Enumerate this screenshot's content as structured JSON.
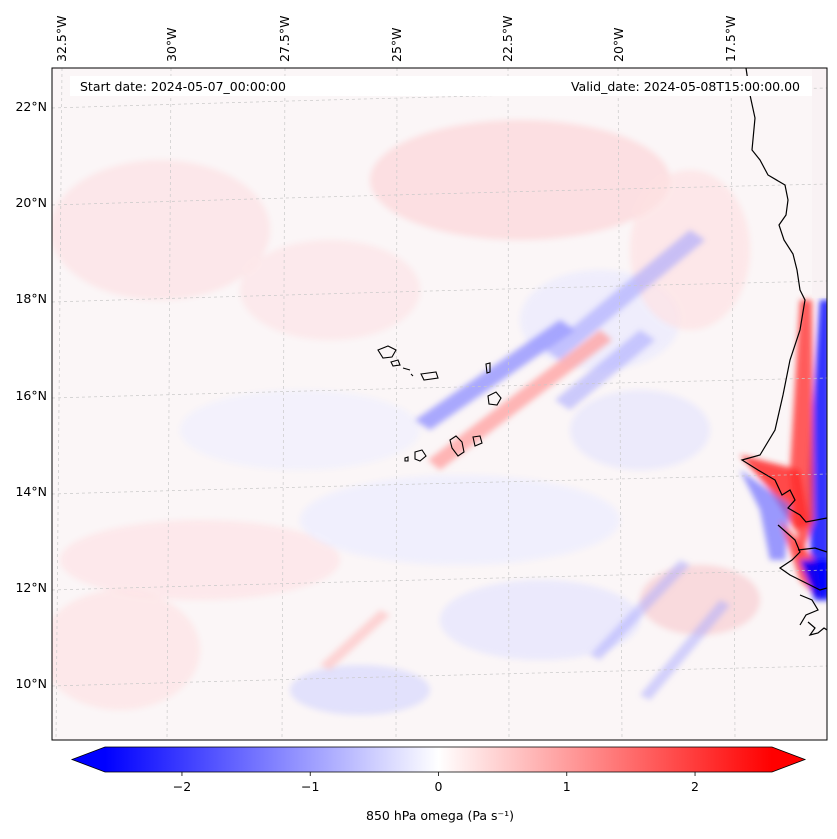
{
  "map": {
    "start_date": "Start date: 2024-05-07_00:00:00",
    "valid_date": "Valid_date: 2024-05-08T15:00:00.00",
    "lon_labels": [
      "32.5°W",
      "30°W",
      "27.5°W",
      "25°W",
      "22.5°W",
      "20°W",
      "17.5°W"
    ],
    "lat_labels": [
      "22°N",
      "20°N",
      "18°N",
      "16°N",
      "14°N",
      "12°N",
      "10°N"
    ],
    "colorbar": {
      "label": "850 hPa omega (Pa s⁻¹)",
      "ticks": [
        "−2",
        "−1",
        "0",
        "1",
        "2"
      ],
      "tick_values": [
        -2,
        -1,
        0,
        1,
        2
      ],
      "range": [
        -2.6,
        2.6
      ],
      "colormap": "bwr",
      "colors": {
        "negative": "#0000ff",
        "zero": "#ffffff",
        "positive": "#ff0000"
      }
    },
    "coastline_color": "#000000",
    "gridline_style": "dashed grey"
  }
}
